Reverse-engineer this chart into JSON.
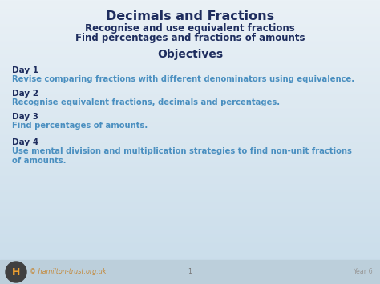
{
  "bg_top": "#eaf1f6",
  "bg_bottom": "#c8dcea",
  "title": "Decimals and Fractions",
  "subtitle1": "Recognise and use equivalent fractions",
  "subtitle2": "Find percentages and fractions of amounts",
  "objectives": "Objectives",
  "days": [
    {
      "label": "Day 1",
      "text": "Revise comparing fractions with different denominators using equivalence."
    },
    {
      "label": "Day 2",
      "text": "Recognise equivalent fractions, decimals and percentages."
    },
    {
      "label": "Day 3",
      "text": "Find percentages of amounts."
    },
    {
      "label": "Day 4",
      "text": "Use mental division and multiplication strategies to find non-unit fractions\nof amounts."
    }
  ],
  "title_color": "#1e2d5e",
  "subtitle_color": "#1e2d5e",
  "obj_color": "#1e2d5e",
  "day_label_color": "#1e2d5e",
  "day_text_color": "#4a8fc0",
  "footer_bg": "#bccfdb",
  "footer_text_color": "#c4893a",
  "footer_page_color": "#777777",
  "footer_year_color": "#999999",
  "logo_bg": "#404040",
  "logo_h_color": "#f0a030",
  "title_fs": 11.5,
  "subtitle_fs": 8.5,
  "obj_fs": 10.0,
  "day_label_fs": 7.5,
  "day_text_fs": 7.2,
  "footer_fs": 5.8,
  "footer_copyright": "© hamilton-trust.org.uk",
  "footer_page": "1",
  "footer_year": "Year 6"
}
